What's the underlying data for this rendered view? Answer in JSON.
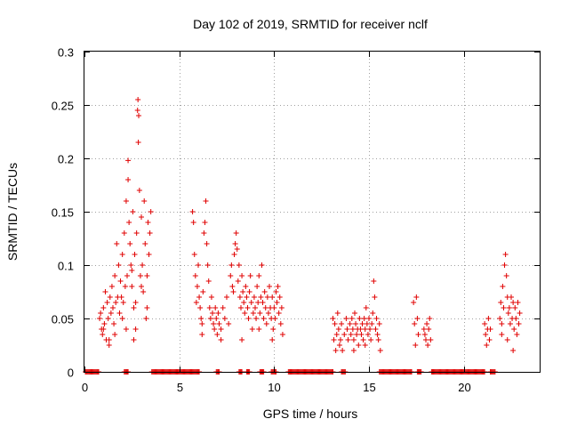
{
  "chart_data": {
    "type": "scatter",
    "title": "Day 102 of 2019, SRMTID for receiver nclf",
    "xlabel": "GPS time / hours",
    "ylabel": "SRMTID / TECUs",
    "xlim": [
      0,
      24
    ],
    "ylim": [
      0,
      0.3
    ],
    "x_ticks": [
      0,
      5,
      10,
      15,
      20
    ],
    "x_tick_labels": [
      "0",
      "5",
      "10",
      "15",
      "20"
    ],
    "y_ticks": [
      0,
      0.05,
      0.1,
      0.15,
      0.2,
      0.25,
      0.3
    ],
    "y_tick_labels": [
      "0",
      "0.05",
      "0.1",
      "0.15",
      "0.2",
      "0.25",
      "0.3"
    ],
    "grid": true,
    "marker": "plus",
    "series_color": "#e00000",
    "series": [
      {
        "name": "SRMTID",
        "points": [
          [
            0.8,
            0.05
          ],
          [
            0.85,
            0.055
          ],
          [
            0.9,
            0.04
          ],
          [
            0.95,
            0.035
          ],
          [
            1.0,
            0.06
          ],
          [
            1.05,
            0.045
          ],
          [
            1.1,
            0.075
          ],
          [
            1.15,
            0.03
          ],
          [
            1.2,
            0.065
          ],
          [
            1.25,
            0.05
          ],
          [
            1.3,
            0.025
          ],
          [
            1.35,
            0.07
          ],
          [
            1.4,
            0.055
          ],
          [
            1.45,
            0.08
          ],
          [
            1.5,
            0.06
          ],
          [
            1.55,
            0.045
          ],
          [
            1.6,
            0.09
          ],
          [
            1.65,
            0.065
          ],
          [
            1.7,
            0.12
          ],
          [
            1.75,
            0.07
          ],
          [
            1.8,
            0.1
          ],
          [
            1.85,
            0.055
          ],
          [
            1.9,
            0.085
          ],
          [
            1.95,
            0.07
          ],
          [
            2.0,
            0.11
          ],
          [
            2.05,
            0.065
          ],
          [
            2.1,
            0.13
          ],
          [
            2.15,
            0.08
          ],
          [
            2.2,
            0.16
          ],
          [
            2.25,
            0.09
          ],
          [
            2.3,
            0.198
          ],
          [
            2.35,
            0.14
          ],
          [
            2.4,
            0.12
          ],
          [
            2.45,
            0.1
          ],
          [
            2.5,
            0.08
          ],
          [
            2.55,
            0.15
          ],
          [
            2.6,
            0.06
          ],
          [
            2.65,
            0.11
          ],
          [
            2.7,
            0.04
          ],
          [
            2.75,
            0.13
          ],
          [
            2.8,
            0.245
          ],
          [
            2.82,
            0.255
          ],
          [
            2.84,
            0.215
          ],
          [
            2.86,
            0.24
          ],
          [
            2.9,
            0.17
          ],
          [
            2.95,
            0.09
          ],
          [
            3.0,
            0.145
          ],
          [
            3.05,
            0.1
          ],
          [
            3.1,
            0.075
          ],
          [
            3.15,
            0.16
          ],
          [
            3.2,
            0.12
          ],
          [
            3.25,
            0.05
          ],
          [
            3.3,
            0.09
          ],
          [
            3.35,
            0.14
          ],
          [
            3.4,
            0.11
          ],
          [
            3.45,
            0.13
          ],
          [
            3.5,
            0.15
          ],
          [
            1.0,
            0.04
          ],
          [
            1.3,
            0.03
          ],
          [
            1.6,
            0.035
          ],
          [
            2.0,
            0.05
          ],
          [
            2.3,
            0.18
          ],
          [
            2.5,
            0.095
          ],
          [
            2.7,
            0.065
          ],
          [
            3.0,
            0.08
          ],
          [
            3.3,
            0.06
          ],
          [
            2.2,
            0.04
          ],
          [
            2.6,
            0.03
          ],
          [
            5.7,
            0.15
          ],
          [
            5.75,
            0.14
          ],
          [
            5.8,
            0.11
          ],
          [
            5.85,
            0.09
          ],
          [
            5.9,
            0.065
          ],
          [
            5.95,
            0.08
          ],
          [
            6.0,
            0.1
          ],
          [
            6.05,
            0.07
          ],
          [
            6.1,
            0.06
          ],
          [
            6.15,
            0.05
          ],
          [
            6.2,
            0.045
          ],
          [
            6.25,
            0.075
          ],
          [
            6.3,
            0.13
          ],
          [
            6.35,
            0.14
          ],
          [
            6.4,
            0.16
          ],
          [
            6.45,
            0.12
          ],
          [
            6.5,
            0.1
          ],
          [
            6.55,
            0.085
          ],
          [
            6.6,
            0.06
          ],
          [
            6.65,
            0.05
          ],
          [
            6.7,
            0.07
          ],
          [
            6.75,
            0.055
          ],
          [
            6.8,
            0.045
          ],
          [
            6.85,
            0.04
          ],
          [
            6.9,
            0.06
          ],
          [
            6.95,
            0.05
          ],
          [
            7.0,
            0.035
          ],
          [
            7.05,
            0.055
          ],
          [
            7.1,
            0.045
          ],
          [
            7.2,
            0.04
          ],
          [
            7.3,
            0.06
          ],
          [
            7.4,
            0.05
          ],
          [
            7.5,
            0.07
          ],
          [
            7.6,
            0.045
          ],
          [
            7.7,
            0.09
          ],
          [
            7.75,
            0.1
          ],
          [
            7.8,
            0.08
          ],
          [
            7.85,
            0.075
          ],
          [
            7.9,
            0.11
          ],
          [
            7.95,
            0.12
          ],
          [
            8.0,
            0.13
          ],
          [
            8.05,
            0.115
          ],
          [
            8.1,
            0.085
          ],
          [
            8.15,
            0.1
          ],
          [
            8.2,
            0.07
          ],
          [
            8.25,
            0.06
          ],
          [
            8.3,
            0.09
          ],
          [
            8.35,
            0.075
          ],
          [
            8.4,
            0.065
          ],
          [
            8.45,
            0.055
          ],
          [
            8.5,
            0.08
          ],
          [
            8.55,
            0.07
          ],
          [
            8.6,
            0.06
          ],
          [
            8.65,
            0.05
          ],
          [
            8.7,
            0.075
          ],
          [
            8.75,
            0.09
          ],
          [
            8.8,
            0.065
          ],
          [
            8.85,
            0.04
          ],
          [
            8.9,
            0.055
          ],
          [
            8.95,
            0.07
          ],
          [
            9.0,
            0.06
          ],
          [
            9.05,
            0.05
          ],
          [
            9.1,
            0.08
          ],
          [
            9.15,
            0.065
          ],
          [
            9.2,
            0.09
          ],
          [
            9.25,
            0.055
          ],
          [
            9.3,
            0.07
          ],
          [
            9.35,
            0.1
          ],
          [
            9.4,
            0.065
          ],
          [
            9.45,
            0.05
          ],
          [
            9.5,
            0.075
          ],
          [
            9.55,
            0.06
          ],
          [
            9.6,
            0.045
          ],
          [
            9.65,
            0.07
          ],
          [
            9.7,
            0.055
          ],
          [
            9.75,
            0.08
          ],
          [
            9.8,
            0.06
          ],
          [
            9.85,
            0.05
          ],
          [
            9.9,
            0.07
          ],
          [
            9.95,
            0.04
          ],
          [
            10.0,
            0.06
          ],
          [
            10.05,
            0.05
          ],
          [
            10.1,
            0.075
          ],
          [
            10.15,
            0.065
          ],
          [
            10.2,
            0.08
          ],
          [
            10.25,
            0.055
          ],
          [
            10.3,
            0.07
          ],
          [
            10.35,
            0.045
          ],
          [
            10.4,
            0.06
          ],
          [
            10.45,
            0.035
          ],
          [
            6.2,
            0.035
          ],
          [
            7.2,
            0.03
          ],
          [
            8.3,
            0.03
          ],
          [
            9.2,
            0.04
          ],
          [
            9.9,
            0.03
          ],
          [
            13.1,
            0.05
          ],
          [
            13.15,
            0.03
          ],
          [
            13.2,
            0.045
          ],
          [
            13.25,
            0.02
          ],
          [
            13.3,
            0.035
          ],
          [
            13.35,
            0.055
          ],
          [
            13.4,
            0.04
          ],
          [
            13.45,
            0.025
          ],
          [
            13.5,
            0.03
          ],
          [
            13.55,
            0.045
          ],
          [
            13.6,
            0.02
          ],
          [
            13.7,
            0.035
          ],
          [
            13.8,
            0.05
          ],
          [
            13.85,
            0.04
          ],
          [
            13.9,
            0.03
          ],
          [
            14.0,
            0.045
          ],
          [
            14.05,
            0.035
          ],
          [
            14.1,
            0.05
          ],
          [
            14.15,
            0.04
          ],
          [
            14.2,
            0.03
          ],
          [
            14.25,
            0.055
          ],
          [
            14.3,
            0.045
          ],
          [
            14.35,
            0.035
          ],
          [
            14.4,
            0.04
          ],
          [
            14.45,
            0.025
          ],
          [
            14.5,
            0.05
          ],
          [
            14.55,
            0.04
          ],
          [
            14.6,
            0.035
          ],
          [
            14.65,
            0.045
          ],
          [
            14.7,
            0.03
          ],
          [
            14.75,
            0.05
          ],
          [
            14.8,
            0.04
          ],
          [
            14.85,
            0.06
          ],
          [
            14.9,
            0.045
          ],
          [
            14.95,
            0.035
          ],
          [
            15.0,
            0.05
          ],
          [
            15.05,
            0.04
          ],
          [
            15.1,
            0.03
          ],
          [
            15.15,
            0.045
          ],
          [
            15.2,
            0.055
          ],
          [
            15.25,
            0.085
          ],
          [
            15.3,
            0.07
          ],
          [
            15.35,
            0.04
          ],
          [
            15.4,
            0.05
          ],
          [
            15.45,
            0.035
          ],
          [
            15.5,
            0.03
          ],
          [
            15.55,
            0.045
          ],
          [
            15.6,
            0.02
          ],
          [
            14.2,
            0.02
          ],
          [
            14.8,
            0.025
          ],
          [
            17.35,
            0.065
          ],
          [
            17.4,
            0.045
          ],
          [
            17.45,
            0.025
          ],
          [
            17.5,
            0.07
          ],
          [
            17.55,
            0.05
          ],
          [
            17.6,
            0.035
          ],
          [
            17.9,
            0.04
          ],
          [
            17.95,
            0.035
          ],
          [
            18.0,
            0.03
          ],
          [
            18.05,
            0.045
          ],
          [
            18.1,
            0.025
          ],
          [
            18.15,
            0.04
          ],
          [
            18.2,
            0.05
          ],
          [
            18.25,
            0.03
          ],
          [
            21.1,
            0.045
          ],
          [
            21.15,
            0.035
          ],
          [
            21.2,
            0.025
          ],
          [
            21.25,
            0.04
          ],
          [
            21.3,
            0.05
          ],
          [
            21.35,
            0.03
          ],
          [
            21.4,
            0.04
          ],
          [
            21.9,
            0.05
          ],
          [
            21.95,
            0.065
          ],
          [
            22.0,
            0.045
          ],
          [
            22.05,
            0.08
          ],
          [
            22.1,
            0.06
          ],
          [
            22.15,
            0.1
          ],
          [
            22.2,
            0.11
          ],
          [
            22.25,
            0.09
          ],
          [
            22.3,
            0.07
          ],
          [
            22.35,
            0.055
          ],
          [
            22.4,
            0.06
          ],
          [
            22.45,
            0.045
          ],
          [
            22.5,
            0.07
          ],
          [
            22.55,
            0.05
          ],
          [
            22.6,
            0.065
          ],
          [
            22.65,
            0.04
          ],
          [
            22.7,
            0.06
          ],
          [
            22.75,
            0.05
          ],
          [
            22.8,
            0.035
          ],
          [
            22.85,
            0.065
          ],
          [
            22.9,
            0.045
          ],
          [
            22.95,
            0.055
          ],
          [
            22.3,
            0.03
          ],
          [
            22.6,
            0.02
          ],
          [
            22.0,
            0.035
          ]
        ]
      }
    ],
    "zero_runs": [
      [
        0.05,
        0.75
      ],
      [
        2.1,
        2.3
      ],
      [
        3.55,
        6.05
      ],
      [
        6.95,
        7.1
      ],
      [
        8.15,
        8.3
      ],
      [
        8.55,
        8.7
      ],
      [
        9.25,
        9.45
      ],
      [
        9.85,
        10.1
      ],
      [
        10.75,
        13.1
      ],
      [
        13.55,
        13.75
      ],
      [
        15.55,
        17.25
      ],
      [
        17.55,
        17.75
      ],
      [
        18.3,
        21.1
      ],
      [
        21.4,
        21.65
      ]
    ]
  }
}
